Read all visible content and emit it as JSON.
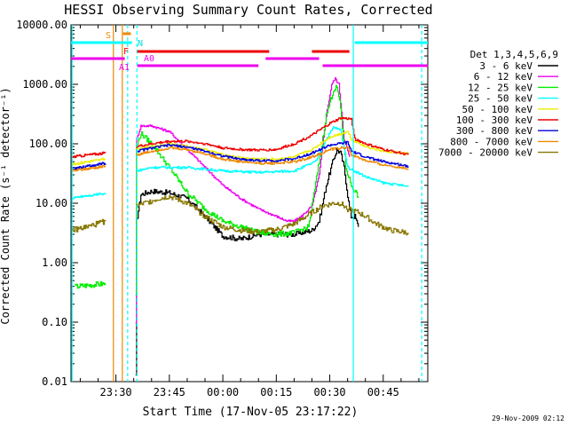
{
  "chart_data": {
    "type": "line",
    "title": "HESSI Observing Summary Count Rates, Corrected",
    "xlabel": "Start Time (17-Nov-05 23:17:22)",
    "ylabel": "Corrected Count Rate (s⁻¹ detector⁻¹)",
    "y_scale": "log",
    "ylim": [
      0.01,
      10000
    ],
    "y_ticks": [
      "10000.00",
      "1000.00",
      "100.00",
      "10.00",
      "1.00",
      "0.10",
      "0.01"
    ],
    "x_ticks": [
      "23:30",
      "23:45",
      "00:00",
      "00:15",
      "00:30",
      "00:45"
    ],
    "x_tick_minutes": [
      30,
      45,
      60,
      75,
      90,
      105
    ],
    "x_range_minutes": [
      17.4,
      117.5
    ],
    "legend_title": "Det 1,3,4,5,6,9",
    "series": [
      {
        "name": "3 - 6 keV",
        "color": "#000000",
        "points": [
          [
            35.5,
            0.012
          ],
          [
            35.8,
            5
          ],
          [
            37,
            14
          ],
          [
            40,
            16
          ],
          [
            45,
            15
          ],
          [
            50,
            12
          ],
          [
            55,
            6
          ],
          [
            60,
            2.8
          ],
          [
            65,
            2.5
          ],
          [
            70,
            3
          ],
          [
            80,
            3
          ],
          [
            85,
            3.5
          ],
          [
            87,
            5
          ],
          [
            89,
            20
          ],
          [
            91,
            55
          ],
          [
            92,
            80
          ],
          [
            93,
            70
          ],
          [
            94,
            40
          ],
          [
            95.5,
            8
          ],
          [
            96,
            6
          ],
          [
            97,
            6
          ],
          [
            98,
            4
          ]
        ]
      },
      {
        "name": "6 - 12 keV",
        "color": "#ee00ee",
        "points": [
          [
            35.5,
            0.1
          ],
          [
            35.8,
            120
          ],
          [
            37,
            200
          ],
          [
            40,
            200
          ],
          [
            45,
            160
          ],
          [
            50,
            80
          ],
          [
            55,
            40
          ],
          [
            60,
            20
          ],
          [
            65,
            12
          ],
          [
            70,
            8
          ],
          [
            75,
            6
          ],
          [
            78,
            5
          ],
          [
            80,
            5
          ],
          [
            82,
            6
          ],
          [
            85,
            9
          ],
          [
            87,
            30
          ],
          [
            89,
            300
          ],
          [
            90.5,
            1000
          ],
          [
            91.5,
            1250
          ],
          [
            92.5,
            1000
          ],
          [
            94,
            120
          ],
          [
            95.5,
            60
          ]
        ]
      },
      {
        "name": "12 - 25 keV",
        "color": "#00ee00",
        "points": [
          [
            35.5,
            0.3
          ],
          [
            35.8,
            90
          ],
          [
            37,
            150
          ],
          [
            40,
            100
          ],
          [
            45,
            40
          ],
          [
            50,
            15
          ],
          [
            55,
            8
          ],
          [
            60,
            5
          ],
          [
            65,
            4
          ],
          [
            70,
            3.2
          ],
          [
            75,
            3
          ],
          [
            80,
            3.2
          ],
          [
            84,
            4
          ],
          [
            87,
            50
          ],
          [
            89,
            300
          ],
          [
            91,
            800
          ],
          [
            92,
            900
          ],
          [
            93,
            400
          ],
          [
            94.5,
            40
          ],
          [
            96,
            20
          ],
          [
            98,
            13
          ]
        ],
        "pre": [
          [
            18.5,
            0.4
          ],
          [
            27,
            0.45
          ]
        ]
      },
      {
        "name": "25 - 50 keV",
        "color": "#00ffff",
        "points": [
          [
            35.8,
            35
          ],
          [
            40,
            40
          ],
          [
            50,
            40
          ],
          [
            60,
            35
          ],
          [
            70,
            33
          ],
          [
            80,
            35
          ],
          [
            86,
            50
          ],
          [
            89,
            120
          ],
          [
            91,
            190
          ],
          [
            93,
            170
          ],
          [
            95,
            40
          ],
          [
            100,
            28
          ],
          [
            105,
            22
          ],
          [
            110,
            20
          ],
          [
            112,
            19
          ]
        ],
        "pre": [
          [
            17.6,
            12
          ],
          [
            20,
            13
          ],
          [
            25,
            14
          ],
          [
            27,
            15
          ]
        ]
      },
      {
        "name": "50 - 100 keV",
        "color": "#eeee00",
        "points": [
          [
            35.8,
            80
          ],
          [
            40,
            90
          ],
          [
            45,
            100
          ],
          [
            50,
            90
          ],
          [
            55,
            80
          ],
          [
            60,
            65
          ],
          [
            65,
            58
          ],
          [
            70,
            55
          ],
          [
            75,
            55
          ],
          [
            80,
            60
          ],
          [
            85,
            80
          ],
          [
            90,
            130
          ],
          [
            95,
            160
          ],
          [
            96,
            120
          ],
          [
            100,
            90
          ],
          [
            105,
            75
          ],
          [
            110,
            70
          ],
          [
            112,
            68
          ]
        ],
        "pre": [
          [
            17.6,
            45
          ],
          [
            22,
            50
          ],
          [
            27,
            55
          ]
        ]
      },
      {
        "name": "100 - 300 keV",
        "color": "#ee0000",
        "points": [
          [
            35.8,
            90
          ],
          [
            40,
            100
          ],
          [
            45,
            110
          ],
          [
            50,
            110
          ],
          [
            55,
            100
          ],
          [
            60,
            85
          ],
          [
            65,
            80
          ],
          [
            70,
            78
          ],
          [
            75,
            80
          ],
          [
            80,
            100
          ],
          [
            85,
            140
          ],
          [
            90,
            220
          ],
          [
            93,
            270
          ],
          [
            96,
            260
          ],
          [
            97,
            120
          ],
          [
            100,
            100
          ],
          [
            105,
            80
          ],
          [
            110,
            70
          ],
          [
            112,
            65
          ]
        ],
        "pre": [
          [
            17.6,
            60
          ],
          [
            22,
            65
          ],
          [
            27,
            70
          ]
        ]
      },
      {
        "name": "300 - 800 keV",
        "color": "#0000dd",
        "points": [
          [
            35.8,
            75
          ],
          [
            40,
            85
          ],
          [
            45,
            95
          ],
          [
            50,
            88
          ],
          [
            55,
            75
          ],
          [
            60,
            62
          ],
          [
            65,
            55
          ],
          [
            70,
            52
          ],
          [
            75,
            52
          ],
          [
            80,
            56
          ],
          [
            85,
            70
          ],
          [
            90,
            95
          ],
          [
            95,
            105
          ],
          [
            96,
            75
          ],
          [
            100,
            60
          ],
          [
            105,
            50
          ],
          [
            110,
            44
          ],
          [
            112,
            42
          ]
        ],
        "pre": [
          [
            17.6,
            38
          ],
          [
            22,
            42
          ],
          [
            27,
            47
          ]
        ]
      },
      {
        "name": "800 - 7000 keV",
        "color": "#ee8800",
        "points": [
          [
            35.8,
            65
          ],
          [
            40,
            75
          ],
          [
            45,
            85
          ],
          [
            50,
            80
          ],
          [
            55,
            68
          ],
          [
            60,
            55
          ],
          [
            65,
            50
          ],
          [
            70,
            47
          ],
          [
            75,
            47
          ],
          [
            80,
            50
          ],
          [
            85,
            60
          ],
          [
            90,
            80
          ],
          [
            95,
            88
          ],
          [
            96,
            65
          ],
          [
            100,
            52
          ],
          [
            105,
            44
          ],
          [
            110,
            40
          ],
          [
            112,
            38
          ]
        ],
        "pre": [
          [
            17.6,
            35
          ],
          [
            22,
            38
          ],
          [
            27,
            42
          ]
        ]
      },
      {
        "name": "7000 - 20000 keV",
        "color": "#887700",
        "points": [
          [
            35.8,
            9
          ],
          [
            38,
            10
          ],
          [
            42,
            12
          ],
          [
            45,
            13
          ],
          [
            50,
            10
          ],
          [
            55,
            6
          ],
          [
            60,
            4
          ],
          [
            65,
            3.5
          ],
          [
            70,
            3.3
          ],
          [
            75,
            3.6
          ],
          [
            80,
            4.5
          ],
          [
            85,
            7
          ],
          [
            88,
            9
          ],
          [
            91,
            10
          ],
          [
            93,
            10
          ],
          [
            95,
            8
          ],
          [
            98,
            7
          ],
          [
            100,
            6
          ],
          [
            103,
            4.5
          ],
          [
            107,
            3.5
          ],
          [
            112,
            3.2
          ]
        ],
        "pre": [
          [
            17.6,
            3.5
          ],
          [
            22,
            4
          ],
          [
            27,
            5
          ]
        ]
      }
    ],
    "state_bars": {
      "S_label": "S",
      "F_label": "F",
      "N_label": "N",
      "A0_label": "A0",
      "A1_label": "A1"
    },
    "timestamp": "29-Nov-2009 02:12"
  }
}
